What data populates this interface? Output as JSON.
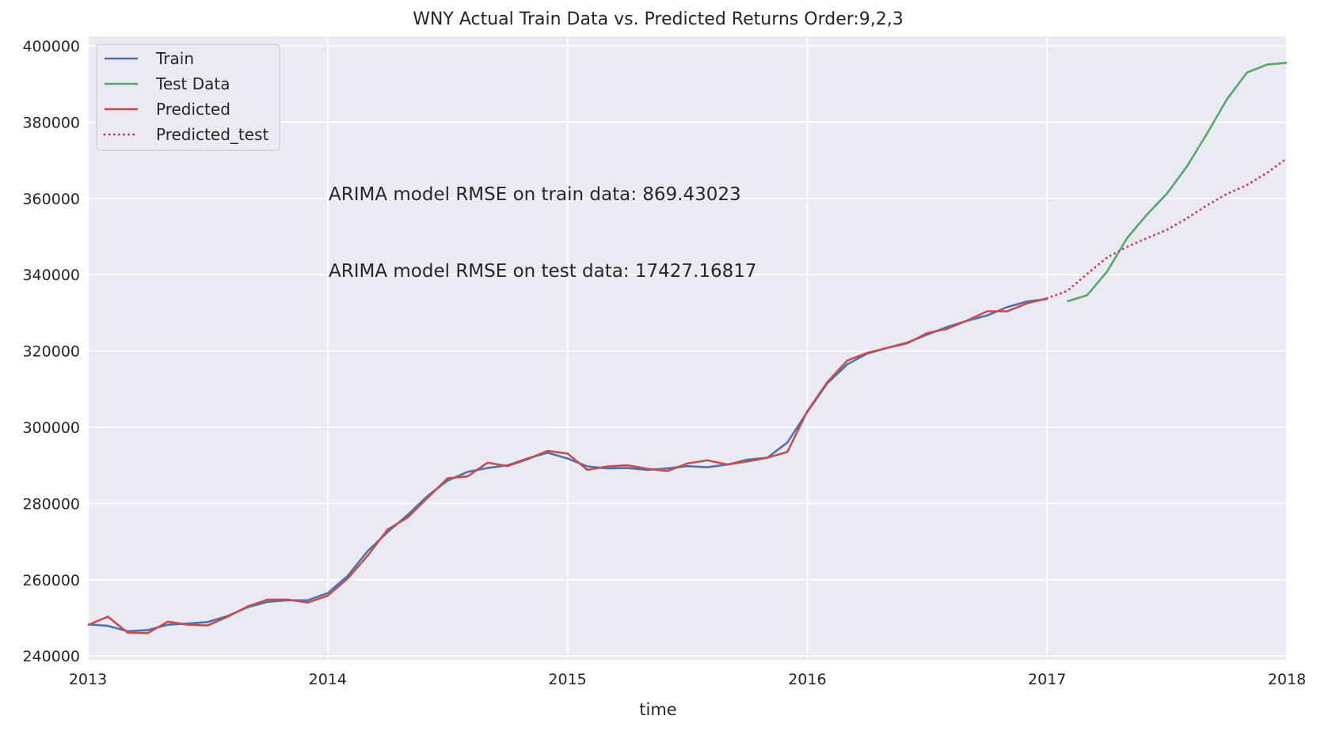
{
  "chart_data": {
    "type": "line",
    "title": "WNY Actual Train Data vs. Predicted Returns Order:9,2,3",
    "xlabel": "time",
    "ylabel": "",
    "x_ticks": [
      "2013",
      "2014",
      "2015",
      "2016",
      "2017",
      "2018"
    ],
    "y_ticks": [
      240000,
      260000,
      280000,
      300000,
      320000,
      340000,
      360000,
      380000,
      400000
    ],
    "y_tick_labels": [
      "240000",
      "260000",
      "280000",
      "300000",
      "320000",
      "340000",
      "360000",
      "380000",
      "400000"
    ],
    "xlim": [
      2013.0,
      2018.0
    ],
    "ylim": [
      239000,
      402500
    ],
    "grid": true,
    "legend_position": "top-left",
    "annotations": [
      "ARIMA model RMSE on train data: 869.43023",
      "ARIMA model RMSE on test data: 17427.16817"
    ],
    "colors": {
      "background": "#eaeaf2",
      "grid": "#ffffff",
      "train": "#4c72b0",
      "test": "#55a868",
      "predicted": "#c44e52"
    },
    "series": [
      {
        "name": "Train",
        "style": "solid",
        "color": "#4c72b0",
        "x": [
          2013.0,
          2013.0833,
          2013.1667,
          2013.25,
          2013.3333,
          2013.4167,
          2013.5,
          2013.5833,
          2013.6667,
          2013.75,
          2013.8333,
          2013.9167,
          2014.0,
          2014.0833,
          2014.1667,
          2014.25,
          2014.3333,
          2014.4167,
          2014.5,
          2014.5833,
          2014.6667,
          2014.75,
          2014.8333,
          2014.9167,
          2015.0,
          2015.0833,
          2015.1667,
          2015.25,
          2015.3333,
          2015.4167,
          2015.5,
          2015.5833,
          2015.6667,
          2015.75,
          2015.8333,
          2015.9167,
          2016.0,
          2016.0833,
          2016.1667,
          2016.25,
          2016.3333,
          2016.4167,
          2016.5,
          2016.5833,
          2016.6667,
          2016.75,
          2016.8333,
          2016.9167,
          2017.0
        ],
        "y": [
          248300,
          247900,
          246500,
          246800,
          248200,
          248500,
          248900,
          250500,
          252800,
          254200,
          254600,
          254600,
          256500,
          261000,
          267500,
          272500,
          277000,
          282000,
          286000,
          288300,
          289300,
          290000,
          291800,
          293300,
          291800,
          289700,
          289200,
          289300,
          288800,
          289200,
          289800,
          289500,
          290200,
          291500,
          292000,
          296000,
          304000,
          311500,
          316500,
          319300,
          320800,
          322200,
          324300,
          326300,
          327900,
          329300,
          331500,
          333000,
          333600
        ]
      },
      {
        "name": "Test Data",
        "style": "solid",
        "color": "#55a868",
        "x": [
          2017.0833,
          2017.1667,
          2017.25,
          2017.3333,
          2017.4167,
          2017.5,
          2017.5833,
          2017.6667,
          2017.75,
          2017.8333,
          2017.9167,
          2018.0
        ],
        "y": [
          333000,
          334600,
          340800,
          349600,
          355800,
          361300,
          368400,
          377000,
          386000,
          393000,
          395100,
          395600
        ]
      },
      {
        "name": "Predicted",
        "style": "solid",
        "color": "#c44e52",
        "x": [
          2013.0,
          2013.0833,
          2013.1667,
          2013.25,
          2013.3333,
          2013.4167,
          2013.5,
          2013.5833,
          2013.6667,
          2013.75,
          2013.8333,
          2013.9167,
          2014.0,
          2014.0833,
          2014.1667,
          2014.25,
          2014.3333,
          2014.4167,
          2014.5,
          2014.5833,
          2014.6667,
          2014.75,
          2014.8333,
          2014.9167,
          2015.0,
          2015.0833,
          2015.1667,
          2015.25,
          2015.3333,
          2015.4167,
          2015.5,
          2015.5833,
          2015.6667,
          2015.75,
          2015.8333,
          2015.9167,
          2016.0,
          2016.0833,
          2016.1667,
          2016.25,
          2016.3333,
          2016.4167,
          2016.5,
          2016.5833,
          2016.6667,
          2016.75,
          2016.8333,
          2016.9167,
          2017.0
        ],
        "y": [
          248100,
          250300,
          246100,
          246000,
          249000,
          248200,
          248000,
          250300,
          253000,
          254800,
          254800,
          254000,
          255800,
          260300,
          266300,
          273200,
          276300,
          281500,
          286600,
          287100,
          290700,
          289800,
          291600,
          293800,
          293100,
          288800,
          289700,
          290000,
          289100,
          288500,
          290500,
          291300,
          290200,
          291000,
          292000,
          293500,
          304200,
          311800,
          317500,
          319500,
          320800,
          322000,
          324700,
          325800,
          328000,
          330400,
          330400,
          332500,
          333800
        ]
      },
      {
        "name": "Predicted_test",
        "style": "dotted",
        "color": "#c44e52",
        "x": [
          2017.0,
          2017.0833,
          2017.1667,
          2017.25,
          2017.3333,
          2017.4167,
          2017.5,
          2017.5833,
          2017.6667,
          2017.75,
          2017.8333,
          2017.9167,
          2018.0
        ],
        "y": [
          333800,
          335700,
          340200,
          344500,
          347300,
          349600,
          351800,
          354800,
          358200,
          361200,
          363500,
          366700,
          370500
        ]
      }
    ]
  }
}
